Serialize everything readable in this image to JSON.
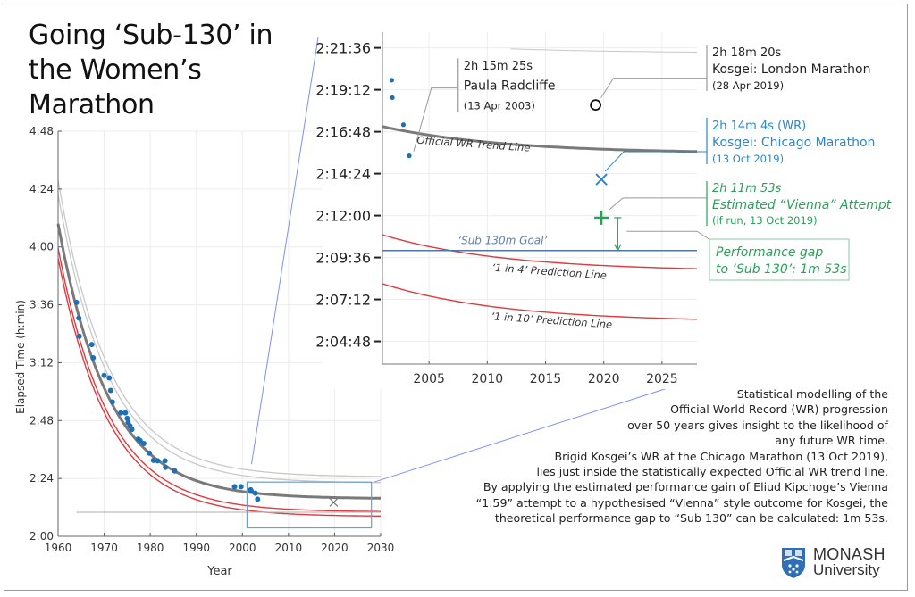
{
  "title_lines": [
    "Going ‘Sub-130’ in",
    "the Women’s",
    "Marathon"
  ],
  "description_lines": [
    "Statistical modelling of the",
    "Official World Record (WR) progression",
    "over 50 years gives insight to the likelihood of",
    "any future WR time.",
    "Brigid Kosgei’s WR at the Chicago Marathon (13 Oct 2019),",
    "lies just inside the statistically expected Official WR trend line.",
    "By applying the estimated performance gain of Eliud Kipchoge’s  Vienna",
    "“1:59” attempt to a hypothesised “Vienna” style outcome for Kosgei, the",
    "theoretical performance gap to “Sub 130” can be calculated: 1m 53s."
  ],
  "logo": {
    "line1": "MONASH",
    "line2": "University",
    "icon": "monash-crest-icon"
  },
  "colors": {
    "data_points": "#1f6fb5",
    "trend": "#7a7a7a",
    "confidence": "#c8c8c8",
    "prediction": "#e0393e",
    "goal": "#4f74a8",
    "wr_annotation": "#2f86c8",
    "vienna": "#2aa05a",
    "zoom_link": "#7f8ff0"
  },
  "chart_data": [
    {
      "type": "scatter",
      "name": "main",
      "title": "",
      "xlabel": "Year",
      "ylabel": "Elapsed Time (h:min)",
      "xlim": [
        1960,
        2030
      ],
      "ylim_minutes": [
        120,
        288
      ],
      "x_ticks": [
        1960,
        1970,
        1980,
        1990,
        2000,
        2010,
        2020,
        2030
      ],
      "y_ticks": [
        "2:00",
        "2:24",
        "2:48",
        "3:12",
        "3:36",
        "4:00",
        "4:24",
        "4:48"
      ],
      "grid": true,
      "model": {
        "asymptote_min": 135.6,
        "amplitude_min": 114.0,
        "decay_years": 11.0,
        "start_year": 1960
      },
      "curves": [
        {
          "name": "Upper bound 2",
          "offset_min": 9.0,
          "scale": 1.08,
          "style": "confidence"
        },
        {
          "name": "Upper bound 1",
          "offset_min": 6.5,
          "scale": 1.05,
          "style": "confidence"
        },
        {
          "name": "Official WR Trend Line",
          "offset_min": 0,
          "scale": 1.0,
          "style": "trend"
        },
        {
          "name": "'1 in 4' Prediction Line",
          "offset_min": -5.5,
          "scale": 0.96,
          "style": "prediction"
        },
        {
          "name": "'1 in 10' Prediction Line",
          "offset_min": -7.4,
          "scale": 0.94,
          "style": "prediction"
        }
      ],
      "reference_line": {
        "name": "Sub 130m Goal",
        "y_min": 130,
        "from_year": 1964,
        "to_year": 2030
      },
      "points": [
        {
          "x": 1964.0,
          "y": 217.0
        },
        {
          "x": 1964.5,
          "y": 210.5
        },
        {
          "x": 1964.6,
          "y": 203.0
        },
        {
          "x": 1967.3,
          "y": 199.5
        },
        {
          "x": 1967.6,
          "y": 194.0
        },
        {
          "x": 1970.0,
          "y": 186.7
        },
        {
          "x": 1971.1,
          "y": 185.7
        },
        {
          "x": 1971.4,
          "y": 180.5
        },
        {
          "x": 1971.8,
          "y": 175.7
        },
        {
          "x": 1973.6,
          "y": 171.2
        },
        {
          "x": 1974.6,
          "y": 171.2
        },
        {
          "x": 1975.0,
          "y": 168.9
        },
        {
          "x": 1975.2,
          "y": 167.2
        },
        {
          "x": 1975.6,
          "y": 165.8
        },
        {
          "x": 1976.0,
          "y": 164.3
        },
        {
          "x": 1977.4,
          "y": 160.3
        },
        {
          "x": 1977.8,
          "y": 159.7
        },
        {
          "x": 1978.6,
          "y": 158.5
        },
        {
          "x": 1979.8,
          "y": 154.5
        },
        {
          "x": 1980.7,
          "y": 151.5
        },
        {
          "x": 1981.6,
          "y": 151.3
        },
        {
          "x": 1983.2,
          "y": 151.3
        },
        {
          "x": 1983.3,
          "y": 148.6
        },
        {
          "x": 1985.3,
          "y": 147.1
        },
        {
          "x": 1998.3,
          "y": 140.6
        },
        {
          "x": 1999.7,
          "y": 140.6
        },
        {
          "x": 2001.8,
          "y": 139.3
        },
        {
          "x": 2001.9,
          "y": 138.8
        },
        {
          "x": 2002.8,
          "y": 137.9
        },
        {
          "x": 2003.3,
          "y": 135.4
        }
      ],
      "markers": [
        {
          "x": 2019.8,
          "y": 134.1,
          "symbol": "x",
          "label": "Kosgei WR"
        }
      ],
      "zoom_box": {
        "x": [
          2001,
          2028
        ],
        "y_min": [
          123.5,
          142.5
        ]
      }
    },
    {
      "type": "scatter",
      "name": "inset",
      "xlabel": "",
      "ylabel": "",
      "xlim": [
        2001,
        2028
      ],
      "ylim_min": [
        123.5,
        142.5
      ],
      "x_ticks": [
        2005,
        2010,
        2015,
        2020,
        2025
      ],
      "y_ticks": [
        "2:04:48",
        "2:07:12",
        "2:09:36",
        "2:12:00",
        "2:14:24",
        "2:16:48",
        "2:19:12",
        "2:21:36"
      ],
      "y_tick_minutes": [
        124.8,
        127.2,
        129.6,
        132.0,
        134.4,
        136.8,
        139.2,
        141.6
      ],
      "grid": true,
      "points": [
        {
          "x": 2001.8,
          "y": 139.75
        },
        {
          "x": 2001.85,
          "y": 138.75
        },
        {
          "x": 2002.8,
          "y": 137.2
        },
        {
          "x": 2003.3,
          "y": 135.42
        }
      ],
      "curves": [
        {
          "name": "Official WR Trend Line",
          "label": "Official WR Trend Line",
          "style": "trend",
          "start": 137.1,
          "end": 135.55
        },
        {
          "name": "Upper bound",
          "style": "confidence",
          "start": 142.0,
          "end": 141.3,
          "from_year": 2012
        },
        {
          "name": "'1 in 4' Prediction Line",
          "label": "‘1 in 4’ Prediction Line",
          "style": "prediction",
          "start": 130.9,
          "end": 128.8
        },
        {
          "name": "'1 in 10' Prediction Line",
          "label": "‘1 in 10’ Prediction Line",
          "style": "prediction",
          "start": 128.1,
          "end": 125.9
        }
      ],
      "goal_line": {
        "label": "‘Sub 130m Goal’",
        "y_min": 130.0
      },
      "annotations": [
        {
          "marker": "dot",
          "x": 2003.3,
          "y": 135.42,
          "time": "2h 15m 25s",
          "name": "Paula Radcliffe",
          "date": "(13 Apr 2003)",
          "color": "#222222"
        },
        {
          "marker": "circle",
          "x": 2019.3,
          "y": 138.33,
          "time": "2h 18m 20s",
          "name": "Kosgei: London Marathon",
          "date": "(28 Apr 2019)",
          "color": "#222222"
        },
        {
          "marker": "x",
          "x": 2019.8,
          "y": 134.07,
          "time": "2h 14m 4s (WR)",
          "name": "Kosgei: Chicago Marathon",
          "date": "(13 Oct 2019)",
          "color": "#2f86c8"
        },
        {
          "marker": "plus",
          "x": 2019.8,
          "y": 131.88,
          "time": "2h 11m 53s",
          "name": "Estimated “Vienna” Attempt",
          "date": "(if run, 13 Oct 2019)",
          "color": "#2aa05a"
        }
      ],
      "gap_annotation": {
        "lines": [
          "Performance gap",
          "to ‘Sub 130’: 1m 53s"
        ],
        "gap": "1m 53s",
        "from_min": 131.88,
        "to_min": 130.0
      }
    }
  ]
}
